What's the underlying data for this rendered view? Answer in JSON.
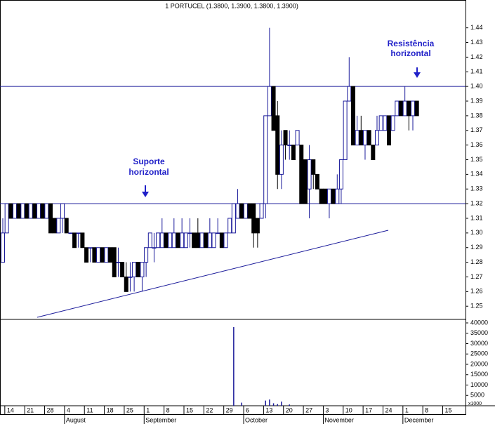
{
  "chart_data": [
    {
      "type": "candlestick",
      "title": "1 PORTUCEL (1.3800, 1.3900, 1.3800, 1.3900)",
      "categories": [
        null,
        14,
        null,
        null,
        null,
        null,
        21,
        null,
        null,
        null,
        null,
        28,
        null,
        null,
        null,
        null,
        4,
        null,
        null,
        null,
        null,
        11,
        null,
        null,
        null,
        null,
        18,
        null,
        null,
        null,
        null,
        25,
        null,
        null,
        null,
        null,
        1,
        null,
        null,
        null,
        null,
        8,
        null,
        null,
        null,
        null,
        15,
        null,
        null,
        null,
        null,
        22,
        null,
        null,
        null,
        null,
        29,
        null,
        null,
        null,
        null,
        6,
        null,
        null,
        null,
        null,
        13,
        null,
        null,
        null,
        null,
        20,
        null,
        null,
        null,
        null,
        27,
        null,
        null,
        null,
        null,
        3,
        null,
        null,
        null,
        null,
        10,
        null,
        null,
        null,
        null,
        17,
        null,
        null,
        null,
        null,
        24,
        null,
        null,
        null,
        null,
        1,
        null,
        null,
        null,
        null,
        8,
        null,
        null,
        null,
        null,
        15,
        null,
        null,
        null,
        null
      ],
      "months": [
        "August",
        "September",
        "October",
        "November",
        "December"
      ],
      "open": [
        1.28,
        1.3,
        1.32,
        1.31,
        1.32,
        1.31,
        1.32,
        1.31,
        1.32,
        1.31,
        1.32,
        1.31,
        1.32,
        1.31,
        1.3,
        1.31,
        1.31,
        1.3,
        1.3,
        1.3,
        1.3,
        1.29,
        1.29,
        1.29,
        1.28,
        1.29,
        1.28,
        1.29,
        1.29,
        1.28,
        1.28,
        1.27,
        1.27,
        1.27,
        1.28,
        1.27,
        1.28,
        1.29,
        1.29,
        1.29,
        1.29,
        1.3,
        1.29,
        1.29,
        1.3,
        1.29,
        1.29,
        1.3,
        1.3,
        1.3,
        1.29,
        1.3,
        1.29,
        1.29,
        1.3,
        1.3,
        1.29,
        1.3,
        1.3,
        1.31,
        1.32,
        1.31,
        1.32,
        1.32,
        1.31,
        1.31,
        1.32,
        1.38,
        1.4,
        1.38,
        1.34,
        1.37,
        1.36,
        1.36,
        1.36,
        1.36,
        1.35,
        1.33,
        1.35,
        1.34,
        1.33,
        1.33,
        1.32,
        1.33,
        1.32,
        1.33,
        1.35,
        1.39,
        1.4,
        1.36,
        1.37,
        1.36,
        1.37,
        1.36,
        1.36,
        1.37,
        1.37,
        1.38,
        1.37,
        1.38,
        1.39,
        1.38,
        1.39,
        1.38,
        1.39,
        null,
        null,
        null,
        null,
        null,
        null,
        null,
        null,
        null,
        null,
        null
      ],
      "high": [
        1.31,
        1.32,
        1.32,
        1.32,
        1.32,
        1.32,
        1.32,
        1.32,
        1.32,
        1.32,
        1.32,
        1.32,
        1.32,
        1.31,
        1.31,
        1.32,
        1.31,
        1.3,
        1.3,
        1.3,
        1.3,
        1.29,
        1.29,
        1.29,
        1.29,
        1.29,
        1.29,
        1.29,
        1.29,
        1.29,
        1.28,
        1.28,
        1.28,
        1.28,
        1.28,
        1.28,
        1.29,
        1.3,
        1.3,
        1.3,
        1.31,
        1.3,
        1.3,
        1.31,
        1.3,
        1.31,
        1.3,
        1.31,
        1.3,
        1.31,
        1.3,
        1.3,
        1.31,
        1.3,
        1.31,
        1.3,
        1.3,
        1.31,
        1.32,
        1.33,
        1.32,
        1.32,
        1.32,
        1.32,
        1.31,
        1.32,
        1.38,
        1.44,
        1.4,
        1.39,
        1.37,
        1.37,
        1.37,
        1.36,
        1.37,
        1.36,
        1.35,
        1.36,
        1.35,
        1.34,
        1.33,
        1.33,
        1.33,
        1.33,
        1.34,
        1.35,
        1.39,
        1.42,
        1.4,
        1.38,
        1.38,
        1.37,
        1.37,
        1.36,
        1.38,
        1.38,
        1.38,
        1.38,
        1.38,
        1.39,
        1.39,
        1.4,
        1.39,
        1.39,
        1.39,
        null,
        null,
        null,
        null,
        null,
        null,
        null,
        null,
        null,
        null,
        null
      ],
      "low": [
        1.28,
        1.3,
        1.31,
        1.31,
        1.31,
        1.31,
        1.31,
        1.31,
        1.31,
        1.31,
        1.31,
        1.31,
        1.3,
        1.3,
        1.3,
        1.3,
        1.3,
        1.3,
        1.29,
        1.29,
        1.29,
        1.28,
        1.28,
        1.28,
        1.28,
        1.28,
        1.28,
        1.28,
        1.27,
        1.27,
        1.27,
        1.26,
        1.26,
        1.26,
        1.27,
        1.26,
        1.27,
        1.29,
        1.28,
        1.29,
        1.29,
        1.29,
        1.29,
        1.29,
        1.29,
        1.29,
        1.29,
        1.29,
        1.29,
        1.29,
        1.29,
        1.29,
        1.29,
        1.29,
        1.3,
        1.29,
        1.29,
        1.3,
        1.3,
        1.31,
        1.31,
        1.31,
        1.31,
        1.29,
        1.29,
        1.31,
        1.31,
        1.38,
        1.37,
        1.33,
        1.33,
        1.35,
        1.35,
        1.35,
        1.36,
        1.32,
        1.32,
        1.31,
        1.33,
        1.33,
        1.32,
        1.32,
        1.31,
        1.32,
        1.32,
        1.32,
        1.35,
        1.39,
        1.36,
        1.36,
        1.36,
        1.35,
        1.36,
        1.35,
        1.36,
        1.37,
        1.37,
        1.36,
        1.37,
        1.38,
        1.38,
        1.38,
        1.37,
        1.37,
        1.38,
        null,
        null,
        null,
        null,
        null,
        null,
        null,
        null,
        null,
        null,
        null
      ],
      "close": [
        1.3,
        1.32,
        1.31,
        1.32,
        1.31,
        1.32,
        1.31,
        1.32,
        1.31,
        1.32,
        1.31,
        1.32,
        1.3,
        1.3,
        1.31,
        1.32,
        1.3,
        1.3,
        1.29,
        1.3,
        1.29,
        1.28,
        1.29,
        1.28,
        1.29,
        1.28,
        1.29,
        1.28,
        1.27,
        1.28,
        1.27,
        1.26,
        1.27,
        1.28,
        1.27,
        1.28,
        1.29,
        1.3,
        1.29,
        1.3,
        1.3,
        1.29,
        1.3,
        1.3,
        1.29,
        1.3,
        1.3,
        1.3,
        1.29,
        1.29,
        1.3,
        1.29,
        1.3,
        1.3,
        1.3,
        1.29,
        1.3,
        1.31,
        1.32,
        1.32,
        1.31,
        1.32,
        1.31,
        1.3,
        1.3,
        1.32,
        1.38,
        1.4,
        1.37,
        1.34,
        1.36,
        1.36,
        1.36,
        1.35,
        1.37,
        1.32,
        1.32,
        1.35,
        1.34,
        1.33,
        1.32,
        1.32,
        1.33,
        1.32,
        1.33,
        1.35,
        1.39,
        1.4,
        1.36,
        1.37,
        1.36,
        1.37,
        1.36,
        1.35,
        1.37,
        1.38,
        1.38,
        1.36,
        1.38,
        1.39,
        1.38,
        1.39,
        1.38,
        1.39,
        1.38,
        null,
        null,
        null,
        null,
        null,
        null,
        null,
        null,
        null,
        null,
        null
      ],
      "up_color": "#ffffff",
      "down_color": "#000000",
      "outline_color": "#1a1a9a",
      "ylim": [
        1.241,
        1.459
      ],
      "yticks": [
        1.25,
        1.26,
        1.27,
        1.28,
        1.29,
        {
          "value": 1.3,
          "label": "1.30"
        },
        1.31,
        1.32,
        1.33,
        1.34,
        1.35,
        1.36,
        1.37,
        1.38,
        1.39,
        {
          "value": 1.4,
          "label": "1.40"
        },
        1.41,
        1.42,
        1.43,
        1.44
      ],
      "levels": [
        1.32,
        1.4
      ],
      "level_color": "#1a1a9a",
      "annotations": [
        [
          "Suporte",
          "horizontal"
        ],
        [
          "Resistência",
          "horizontal"
        ]
      ]
    },
    {
      "type": "bar",
      "values": [
        0,
        0,
        0,
        0,
        0,
        0,
        0,
        0,
        0,
        0,
        0,
        0,
        0,
        0,
        0,
        0,
        0,
        0,
        0,
        0,
        0,
        0,
        0,
        0,
        0,
        0,
        0,
        0,
        0,
        0,
        0,
        0,
        0,
        0,
        0,
        0,
        0,
        0,
        0,
        0,
        0,
        0,
        0,
        0,
        0,
        0,
        0,
        0,
        0,
        0,
        0,
        0,
        0,
        0,
        0,
        0,
        0,
        0,
        38000,
        0,
        1500,
        0,
        0,
        0,
        0,
        0,
        2500,
        3000,
        1200,
        800,
        2000,
        0,
        600,
        0,
        0,
        0,
        0,
        0,
        0,
        0,
        0,
        0,
        0,
        0,
        0,
        0,
        0,
        0,
        0,
        0,
        0,
        0,
        0,
        0,
        0,
        0,
        0,
        0,
        0,
        0,
        0,
        0,
        0,
        0,
        0,
        null,
        null,
        null,
        null,
        null,
        null,
        null,
        null,
        null,
        null,
        null
      ],
      "color": "#1a1a9a",
      "ylim": [
        0,
        40000
      ],
      "yticks": [
        5000,
        10000,
        15000,
        20000,
        25000,
        30000,
        35000,
        40000
      ],
      "unit_label": "x1000"
    }
  ]
}
